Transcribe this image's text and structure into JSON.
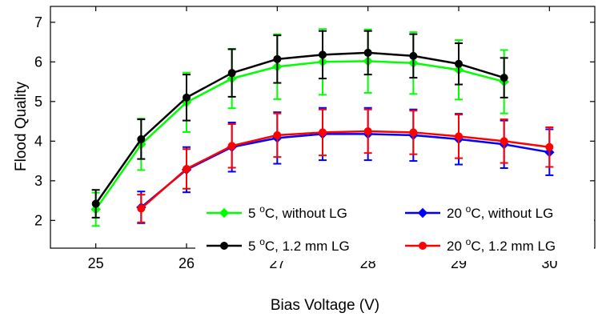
{
  "chart_data": {
    "type": "line",
    "title": "",
    "xlabel": "Bias Voltage (V)",
    "ylabel": "Flood Quality",
    "xlim": [
      24.5,
      30.5
    ],
    "ylim": [
      1.3,
      7.4
    ],
    "xticks": [
      25,
      26,
      27,
      28,
      29,
      30
    ],
    "yticks": [
      2,
      3,
      4,
      5,
      6,
      7
    ],
    "grid": false,
    "legend_position": "bottom-right",
    "series": [
      {
        "name": "5 °C, without LG",
        "label_parts": {
          "pre": "5 ",
          "sup": "o",
          "post": "C, without LG"
        },
        "color": "#00ff00",
        "marker": "diamond",
        "x": [
          25,
          25.5,
          26,
          26.5,
          27,
          27.5,
          28,
          28.5,
          29,
          29.5
        ],
        "y": [
          2.28,
          3.92,
          4.98,
          5.58,
          5.88,
          6.0,
          6.02,
          5.97,
          5.8,
          5.5
        ],
        "err": [
          0.42,
          0.65,
          0.75,
          0.75,
          0.82,
          0.83,
          0.8,
          0.78,
          0.75,
          0.8
        ]
      },
      {
        "name": "20 °C, without LG",
        "label_parts": {
          "pre": "20 ",
          "sup": "o",
          "post": "C, without LG"
        },
        "color": "#0000ff",
        "marker": "diamond",
        "x": [
          25.5,
          26,
          26.5,
          27,
          27.5,
          28,
          28.5,
          29,
          29.5,
          30
        ],
        "y": [
          2.33,
          3.28,
          3.85,
          4.08,
          4.18,
          4.18,
          4.15,
          4.05,
          3.92,
          3.72
        ],
        "err": [
          0.4,
          0.57,
          0.62,
          0.65,
          0.66,
          0.66,
          0.65,
          0.64,
          0.6,
          0.58
        ]
      },
      {
        "name": "5 °C, 1.2 mm LG",
        "label_parts": {
          "pre": "5 ",
          "sup": "o",
          "post": "C, 1.2 mm LG"
        },
        "color": "#000000",
        "marker": "circle",
        "x": [
          25,
          25.5,
          26,
          26.5,
          27,
          27.5,
          28,
          28.5,
          29,
          29.5
        ],
        "y": [
          2.42,
          4.05,
          5.1,
          5.72,
          6.07,
          6.18,
          6.23,
          6.15,
          5.95,
          5.6
        ],
        "err": [
          0.35,
          0.5,
          0.58,
          0.6,
          0.6,
          0.6,
          0.55,
          0.55,
          0.52,
          0.5
        ]
      },
      {
        "name": "20 °C, 1.2 mm LG",
        "label_parts": {
          "pre": "20 ",
          "sup": "o",
          "post": "C, 1.2 mm LG"
        },
        "color": "#ff0000",
        "marker": "circle",
        "x": [
          25.5,
          26,
          26.5,
          27,
          27.5,
          28,
          28.5,
          29,
          29.5,
          30
        ],
        "y": [
          2.3,
          3.3,
          3.88,
          4.15,
          4.22,
          4.25,
          4.22,
          4.12,
          4.0,
          3.85
        ],
        "err": [
          0.35,
          0.5,
          0.55,
          0.55,
          0.58,
          0.55,
          0.55,
          0.55,
          0.55,
          0.5
        ]
      }
    ],
    "legend_order": [
      0,
      1,
      2,
      3
    ]
  }
}
